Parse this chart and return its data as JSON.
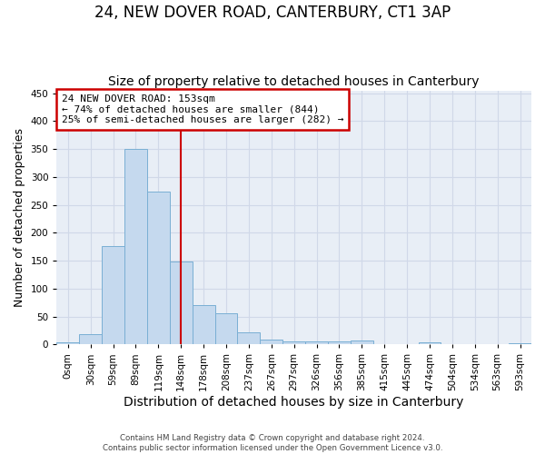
{
  "title": "24, NEW DOVER ROAD, CANTERBURY, CT1 3AP",
  "subtitle": "Size of property relative to detached houses in Canterbury",
  "xlabel": "Distribution of detached houses by size in Canterbury",
  "ylabel": "Number of detached properties",
  "footer_lines": [
    "Contains HM Land Registry data © Crown copyright and database right 2024.",
    "Contains public sector information licensed under the Open Government Licence v3.0."
  ],
  "bin_labels": [
    "0sqm",
    "30sqm",
    "59sqm",
    "89sqm",
    "119sqm",
    "148sqm",
    "178sqm",
    "208sqm",
    "237sqm",
    "267sqm",
    "297sqm",
    "326sqm",
    "356sqm",
    "385sqm",
    "415sqm",
    "445sqm",
    "474sqm",
    "504sqm",
    "534sqm",
    "563sqm",
    "593sqm"
  ],
  "bar_heights": [
    3,
    18,
    176,
    350,
    273,
    149,
    71,
    55,
    22,
    9,
    5,
    5,
    5,
    7,
    0,
    0,
    3,
    0,
    0,
    0,
    2
  ],
  "bar_color": "#c5d9ee",
  "bar_edge_color": "#7aafd4",
  "vline_x_index": 5,
  "vline_color": "#cc0000",
  "annotation_text": "24 NEW DOVER ROAD: 153sqm\n← 74% of detached houses are smaller (844)\n25% of semi-detached houses are larger (282) →",
  "annotation_box_color": "#ffffff",
  "annotation_box_edge_color": "#cc0000",
  "ylim": [
    0,
    455
  ],
  "yticks": [
    0,
    50,
    100,
    150,
    200,
    250,
    300,
    350,
    400,
    450
  ],
  "grid_color": "#d0d8e8",
  "fig_background_color": "#ffffff",
  "plot_background_color": "#e8eef6",
  "title_fontsize": 12,
  "subtitle_fontsize": 10,
  "xlabel_fontsize": 10,
  "ylabel_fontsize": 9,
  "tick_fontsize": 7.5,
  "annotation_fontsize": 8
}
